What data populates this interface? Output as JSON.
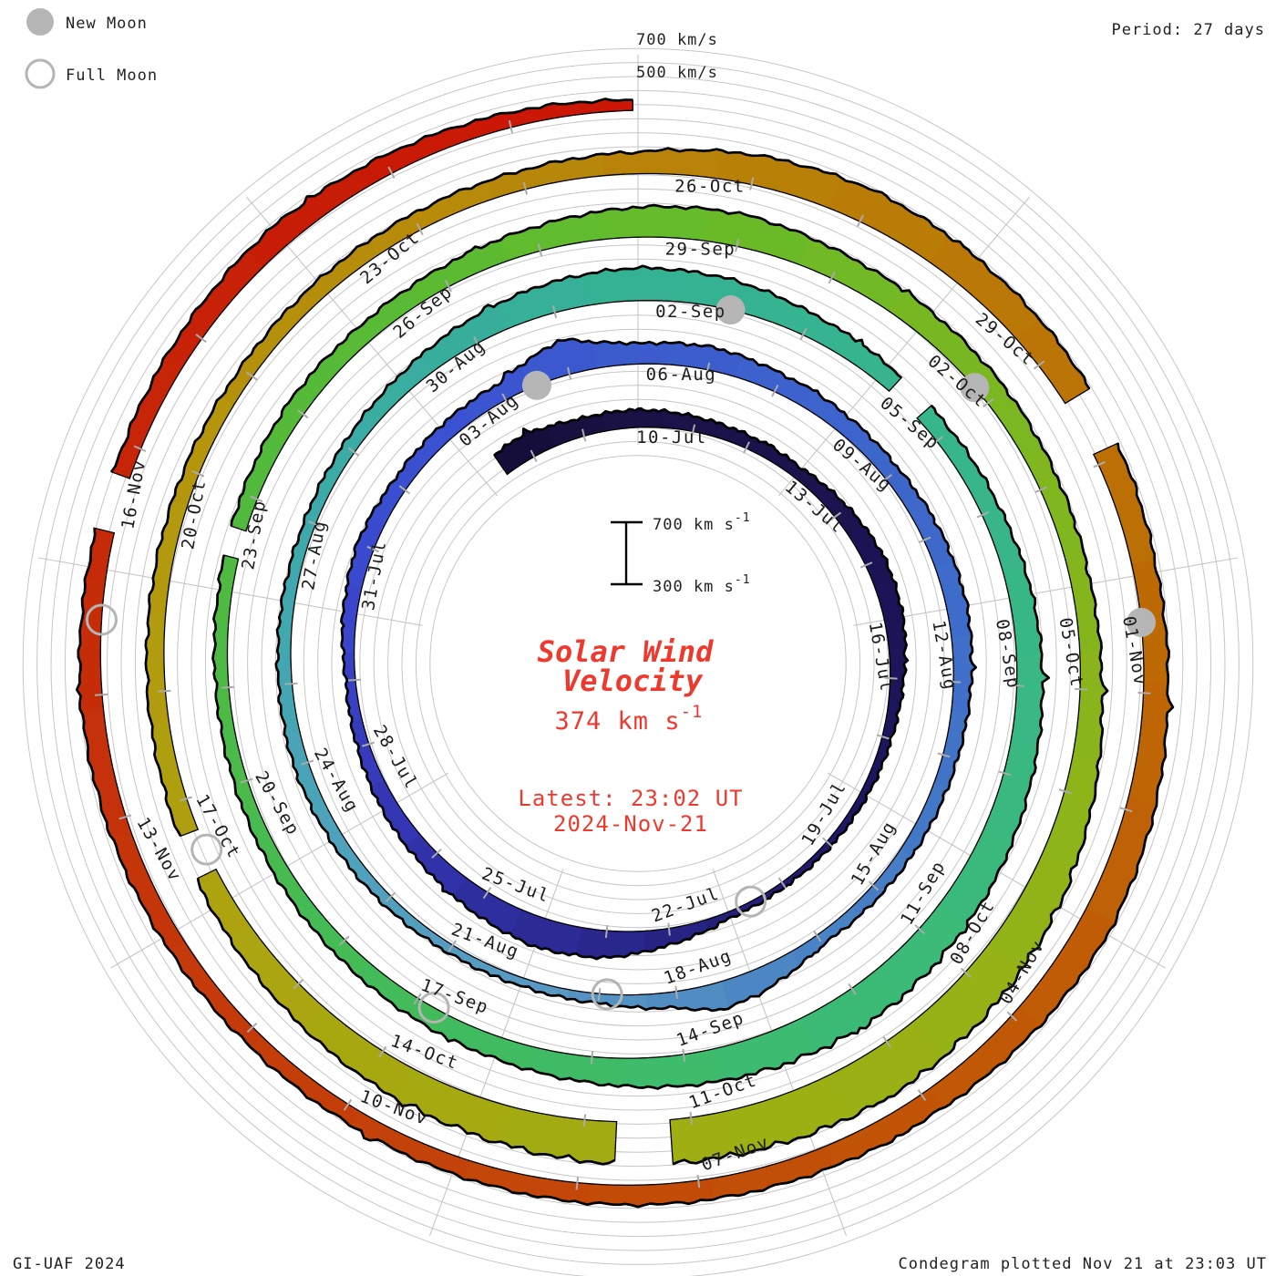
{
  "legend": {
    "new_moon_label": "New Moon",
    "full_moon_label": "Full Moon"
  },
  "header": {
    "period_label": "Period: 27 days"
  },
  "grid_labels": {
    "outer_ring": "700 km/s",
    "inner_ring": "500 km/s"
  },
  "scale_bar": {
    "top_value": "700 km s",
    "top_exp": "-1",
    "bottom_value": "300 km s",
    "bottom_exp": "-1"
  },
  "center": {
    "title_line1": "Solar Wind",
    "title_line2": "Velocity",
    "current_value": "374 km s",
    "current_value_exp": "-1",
    "latest_line1": "Latest: 23:02 UT",
    "latest_line2": "2024-Nov-21"
  },
  "footer": {
    "left": "GI-UAF 2024",
    "right": "Condegram plotted Nov 21 at 23:03 UT"
  },
  "colors": {
    "accent_red_text": "#ee3a2e",
    "moon_gray": "#b5b5b5",
    "grid_gray": "#c6c6c6",
    "tick_gray": "#ababab",
    "label_ink": "#1c1c1c"
  },
  "chart_data": {
    "type": "spiral",
    "title": "Solar Wind Velocity Condegram",
    "period_days": 27,
    "angle_convention": "day 0 (10-Jul) at top, time increases clockwise, one turn = 27 days",
    "radial_axis": {
      "min_kms": 300,
      "max_kms": 700,
      "gridline_step_kms": 100,
      "ring_labels": [
        "500 km/s",
        "700 km/s"
      ]
    },
    "latest_kms": 374,
    "latest_time": "23:02 UT 2024-Nov-21",
    "start_day": -2.6,
    "end_day": 134.96,
    "date_labels": [
      {
        "day": 0,
        "label": "10-Jul"
      },
      {
        "day": 3,
        "label": "13-Jul"
      },
      {
        "day": 6,
        "label": "16-Jul"
      },
      {
        "day": 9,
        "label": "19-Jul"
      },
      {
        "day": 12,
        "label": "22-Jul"
      },
      {
        "day": 15,
        "label": "25-Jul"
      },
      {
        "day": 18,
        "label": "28-Jul"
      },
      {
        "day": 21,
        "label": "31-Jul"
      },
      {
        "day": 24,
        "label": "03-Aug"
      },
      {
        "day": 27,
        "label": "06-Aug"
      },
      {
        "day": 30,
        "label": "09-Aug"
      },
      {
        "day": 33,
        "label": "12-Aug"
      },
      {
        "day": 36,
        "label": "15-Aug"
      },
      {
        "day": 39,
        "label": "18-Aug"
      },
      {
        "day": 42,
        "label": "21-Aug"
      },
      {
        "day": 45,
        "label": "24-Aug"
      },
      {
        "day": 48,
        "label": "27-Aug"
      },
      {
        "day": 51,
        "label": "30-Aug"
      },
      {
        "day": 54,
        "label": "02-Sep"
      },
      {
        "day": 57,
        "label": "05-Sep"
      },
      {
        "day": 60,
        "label": "08-Sep"
      },
      {
        "day": 63,
        "label": "11-Sep"
      },
      {
        "day": 66,
        "label": "14-Sep"
      },
      {
        "day": 69,
        "label": "17-Sep"
      },
      {
        "day": 72,
        "label": "20-Sep"
      },
      {
        "day": 75,
        "label": "23-Sep"
      },
      {
        "day": 78,
        "label": "26-Sep"
      },
      {
        "day": 81,
        "label": "29-Sep"
      },
      {
        "day": 84,
        "label": "02-Oct"
      },
      {
        "day": 87,
        "label": "05-Oct"
      },
      {
        "day": 90,
        "label": "08-Oct"
      },
      {
        "day": 93,
        "label": "11-Oct"
      },
      {
        "day": 96,
        "label": "14-Oct"
      },
      {
        "day": 99,
        "label": "17-Oct"
      },
      {
        "day": 102,
        "label": "20-Oct"
      },
      {
        "day": 105,
        "label": "23-Oct"
      },
      {
        "day": 108,
        "label": "26-Oct"
      },
      {
        "day": 111,
        "label": "29-Oct"
      },
      {
        "day": 114,
        "label": "01-Nov"
      },
      {
        "day": 117,
        "label": "04-Nov"
      },
      {
        "day": 120,
        "label": "07-Nov"
      },
      {
        "day": 123,
        "label": "10-Nov"
      },
      {
        "day": 126,
        "label": "13-Nov"
      },
      {
        "day": 129,
        "label": "16-Nov"
      }
    ],
    "moons": {
      "new_moon_days": [
        25.5,
        55.1,
        84.8,
        114.4
      ],
      "full_moon_days": [
        11.6,
        40.9,
        69.8,
        99.5,
        128.6
      ]
    },
    "data_gaps_days": [
      [
        57.2,
        57.65
      ],
      [
        75.35,
        75.65
      ],
      [
        94.2,
        94.7
      ],
      [
        99.3,
        99.7
      ],
      [
        112.4,
        112.9
      ],
      [
        129.3,
        129.75
      ]
    ],
    "velocity_samples_day_kms": [
      [
        -2.6,
        470
      ],
      [
        -2,
        480
      ],
      [
        -1.5,
        450
      ],
      [
        -1,
        430
      ],
      [
        0,
        430
      ],
      [
        1,
        410
      ],
      [
        2,
        395
      ],
      [
        3,
        385
      ],
      [
        4,
        420
      ],
      [
        5,
        450
      ],
      [
        6,
        440
      ],
      [
        7,
        400
      ],
      [
        8,
        370
      ],
      [
        9,
        355
      ],
      [
        10,
        345
      ],
      [
        11,
        340
      ],
      [
        12,
        345
      ],
      [
        13,
        420
      ],
      [
        14,
        500
      ],
      [
        15,
        520
      ],
      [
        16,
        480
      ],
      [
        17,
        440
      ],
      [
        18,
        420
      ],
      [
        19,
        390
      ],
      [
        20,
        370
      ],
      [
        21,
        400
      ],
      [
        22,
        430
      ],
      [
        23,
        410
      ],
      [
        24,
        420
      ],
      [
        25,
        430
      ],
      [
        26,
        560
      ],
      [
        26.5,
        480
      ],
      [
        27,
        450
      ],
      [
        28,
        470
      ],
      [
        29,
        440
      ],
      [
        30,
        430
      ],
      [
        31,
        420
      ],
      [
        32,
        440
      ],
      [
        33,
        450
      ],
      [
        34,
        430
      ],
      [
        35,
        410
      ],
      [
        36,
        400
      ],
      [
        37,
        390
      ],
      [
        38,
        380
      ],
      [
        39,
        480
      ],
      [
        39.5,
        500
      ],
      [
        40,
        420
      ],
      [
        41,
        370
      ],
      [
        42,
        360
      ],
      [
        43,
        365
      ],
      [
        44,
        380
      ],
      [
        45,
        395
      ],
      [
        46,
        410
      ],
      [
        47,
        400
      ],
      [
        48,
        390
      ],
      [
        49,
        385
      ],
      [
        50,
        400
      ],
      [
        51,
        430
      ],
      [
        52,
        480
      ],
      [
        53,
        520
      ],
      [
        54,
        540
      ],
      [
        55,
        520
      ],
      [
        56,
        470
      ],
      [
        57,
        440
      ],
      [
        58,
        430
      ],
      [
        59,
        440
      ],
      [
        60,
        470
      ],
      [
        61,
        490
      ],
      [
        62,
        510
      ],
      [
        63,
        540
      ],
      [
        64,
        560
      ],
      [
        65,
        580
      ],
      [
        66,
        560
      ],
      [
        67,
        530
      ],
      [
        68,
        490
      ],
      [
        69,
        460
      ],
      [
        70,
        440
      ],
      [
        71,
        420
      ],
      [
        72,
        410
      ],
      [
        73,
        400
      ],
      [
        74,
        395
      ],
      [
        75,
        400
      ],
      [
        76,
        420
      ],
      [
        77,
        440
      ],
      [
        78,
        430
      ],
      [
        79,
        450
      ],
      [
        80,
        480
      ],
      [
        81,
        520
      ],
      [
        82,
        540
      ],
      [
        83,
        500
      ],
      [
        84,
        480
      ],
      [
        85,
        470
      ],
      [
        86,
        450
      ],
      [
        87,
        440
      ],
      [
        88,
        460
      ],
      [
        89,
        520
      ],
      [
        90,
        580
      ],
      [
        91,
        620
      ],
      [
        92,
        650
      ],
      [
        93,
        640
      ],
      [
        94,
        620
      ],
      [
        95,
        600
      ],
      [
        96,
        570
      ],
      [
        97,
        540
      ],
      [
        98,
        500
      ],
      [
        99,
        470
      ],
      [
        100,
        440
      ],
      [
        101,
        430
      ],
      [
        102,
        420
      ],
      [
        103,
        415
      ],
      [
        104,
        410
      ],
      [
        105,
        420
      ],
      [
        106,
        430
      ],
      [
        107,
        440
      ],
      [
        108,
        460
      ],
      [
        109,
        520
      ],
      [
        110,
        550
      ],
      [
        111,
        530
      ],
      [
        112,
        520
      ],
      [
        113,
        490
      ],
      [
        114,
        470
      ],
      [
        115,
        480
      ],
      [
        116,
        510
      ],
      [
        117,
        530
      ],
      [
        118,
        500
      ],
      [
        119,
        470
      ],
      [
        120,
        460
      ],
      [
        121,
        450
      ],
      [
        122,
        440
      ],
      [
        123,
        430
      ],
      [
        124,
        420
      ],
      [
        125,
        415
      ],
      [
        126,
        430
      ],
      [
        127,
        450
      ],
      [
        128,
        460
      ],
      [
        129,
        440
      ],
      [
        130,
        430
      ],
      [
        131,
        450
      ],
      [
        132,
        470
      ],
      [
        133,
        440
      ],
      [
        134,
        410
      ],
      [
        134.96,
        374
      ]
    ],
    "color_stops_day_hex": [
      [
        -3,
        "#150d35"
      ],
      [
        0,
        "#1a1245"
      ],
      [
        9,
        "#1c1660"
      ],
      [
        15,
        "#2c2a96"
      ],
      [
        18,
        "#3436b4"
      ],
      [
        21,
        "#3a46cc"
      ],
      [
        24,
        "#3a52d2"
      ],
      [
        27,
        "#3c5cce"
      ],
      [
        33,
        "#3e6cca"
      ],
      [
        36,
        "#4378c6"
      ],
      [
        39,
        "#4c88c4"
      ],
      [
        42,
        "#579ac2"
      ],
      [
        45,
        "#4fa2bc"
      ],
      [
        48,
        "#3fa8ae"
      ],
      [
        51,
        "#38ad9f"
      ],
      [
        54,
        "#35b194"
      ],
      [
        60,
        "#38b787"
      ],
      [
        66,
        "#3cbb72"
      ],
      [
        69,
        "#41bb60"
      ],
      [
        72,
        "#47bb50"
      ],
      [
        75,
        "#4eba41"
      ],
      [
        78,
        "#57ba35"
      ],
      [
        81,
        "#63bb2b"
      ],
      [
        84,
        "#76b822"
      ],
      [
        87,
        "#84b51d"
      ],
      [
        90,
        "#90b318"
      ],
      [
        93,
        "#9cb014"
      ],
      [
        96,
        "#a4aa11"
      ],
      [
        99,
        "#aca30f"
      ],
      [
        102,
        "#b29a0d"
      ],
      [
        105,
        "#b68e0a"
      ],
      [
        108,
        "#b88408"
      ],
      [
        111,
        "#ba7a06"
      ],
      [
        114,
        "#bc6c05"
      ],
      [
        117,
        "#c05e06"
      ],
      [
        120,
        "#c25107"
      ],
      [
        123,
        "#c34409"
      ],
      [
        126,
        "#c4370a"
      ],
      [
        129,
        "#c52a09"
      ],
      [
        132,
        "#c71e07"
      ],
      [
        135,
        "#cc1505"
      ]
    ]
  }
}
